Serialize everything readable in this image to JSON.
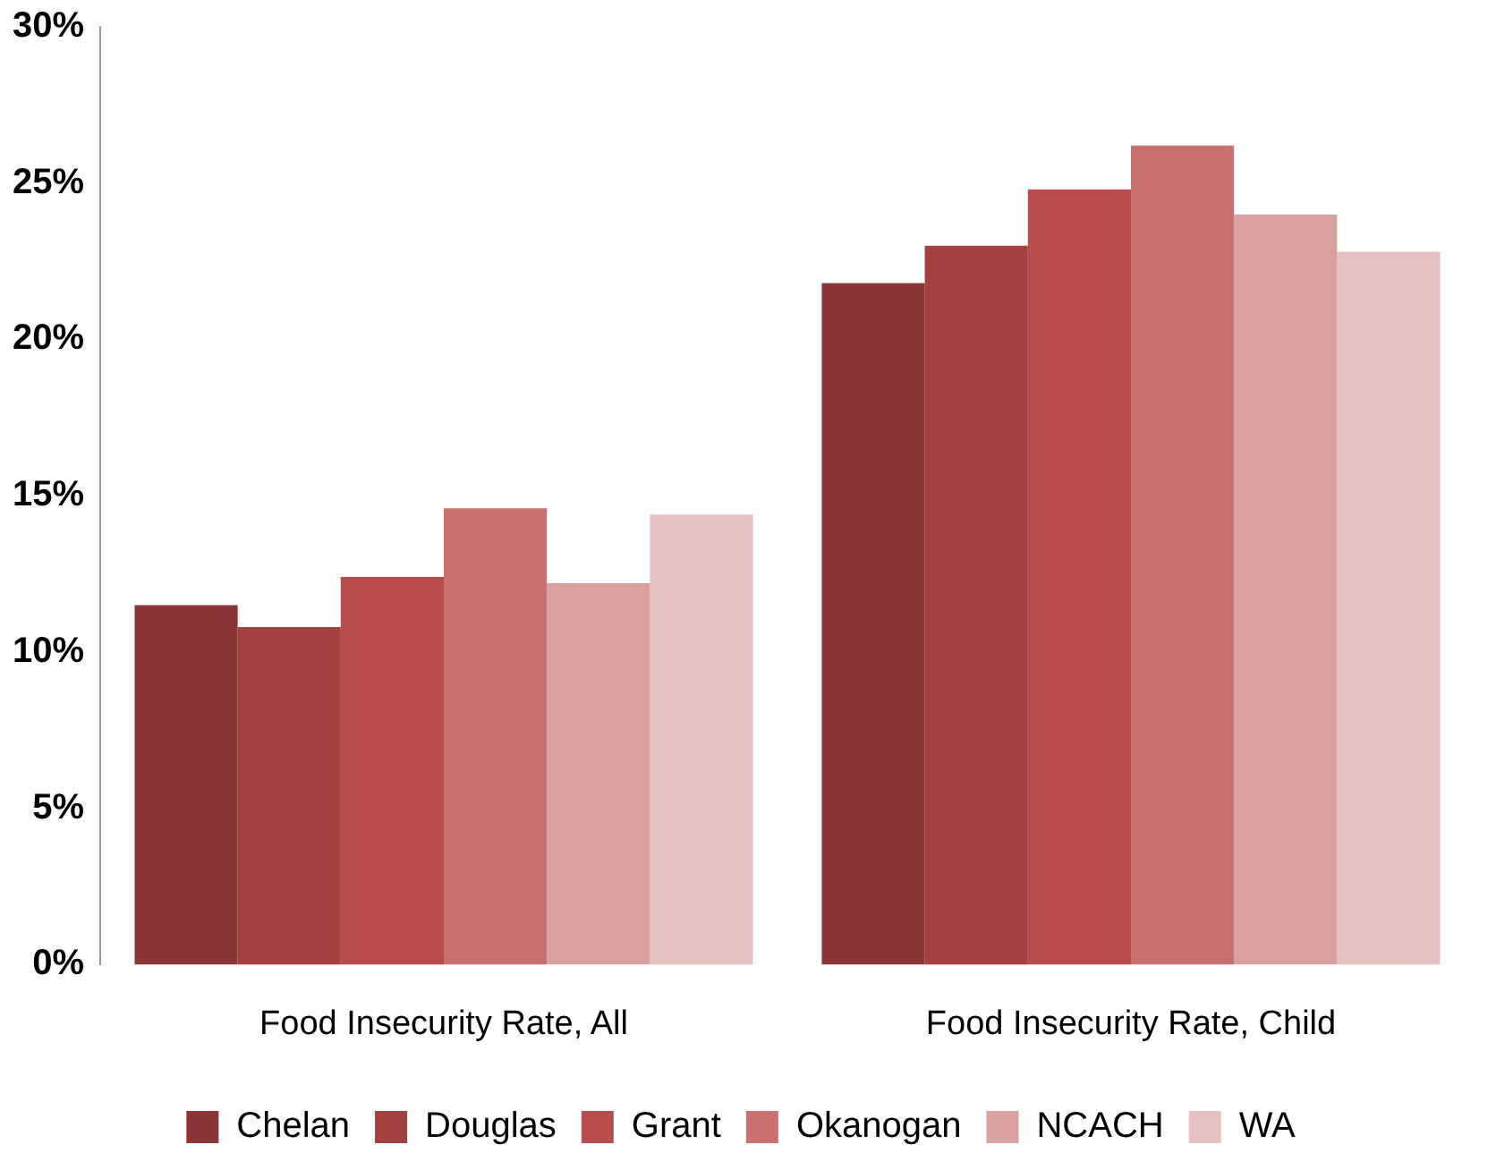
{
  "chart_data": {
    "type": "bar",
    "categories": [
      "Food Insecurity Rate, All",
      "Food Insecurity Rate, Child"
    ],
    "series": [
      {
        "name": "Chelan",
        "color": "#8b3636",
        "values": [
          11.5,
          21.8
        ]
      },
      {
        "name": "Douglas",
        "color": "#a34141",
        "values": [
          10.8,
          23.0
        ]
      },
      {
        "name": "Grant",
        "color": "#b84c4c",
        "values": [
          12.4,
          24.8
        ]
      },
      {
        "name": "Okanogan",
        "color": "#c97070",
        "values": [
          14.6,
          26.2
        ]
      },
      {
        "name": "NCACH",
        "color": "#d9a0a0",
        "values": [
          12.2,
          24.0
        ]
      },
      {
        "name": "WA",
        "color": "#e6c1c1",
        "values": [
          14.4,
          22.8
        ]
      }
    ],
    "ylim": [
      0,
      30
    ],
    "yticks": [
      {
        "value": 0,
        "label": "0%"
      },
      {
        "value": 5,
        "label": "5%"
      },
      {
        "value": 10,
        "label": "10%"
      },
      {
        "value": 15,
        "label": "15%"
      },
      {
        "value": 20,
        "label": "20%"
      },
      {
        "value": 25,
        "label": "25%"
      },
      {
        "value": 30,
        "label": "30%"
      }
    ],
    "grid": false,
    "legend": "bottom"
  }
}
